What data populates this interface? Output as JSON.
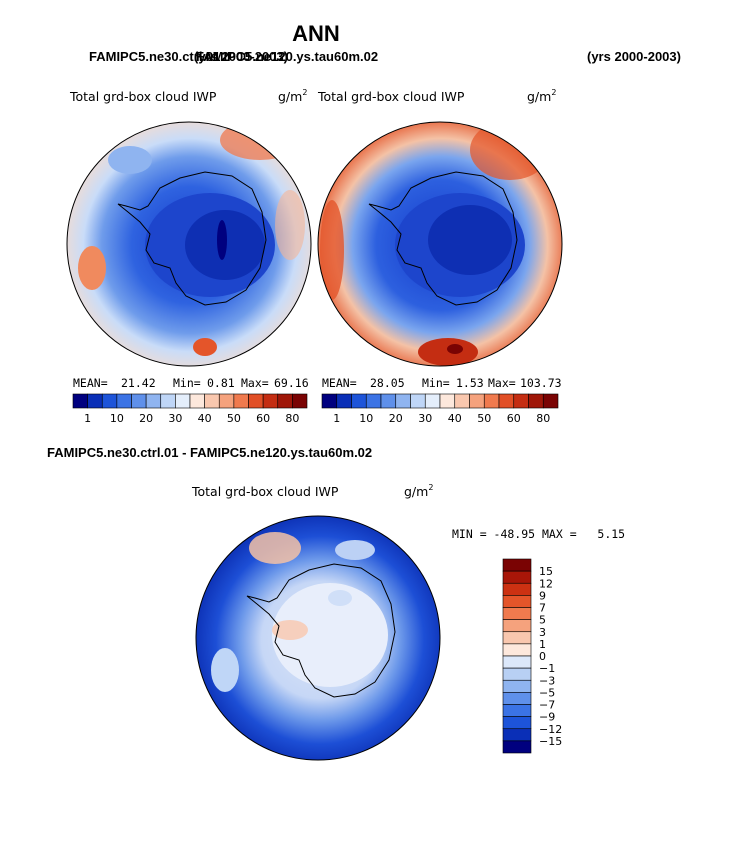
{
  "page_title": "ANN",
  "chart_data": [
    {
      "type": "heatmap",
      "panel": "top-left",
      "run_label_left": "FAMIPC5.ne30.ctrl.01",
      "run_label_right": "(yrs 2000-2003)",
      "title": "Total grd-box cloud IWP",
      "units_base": "g/m",
      "units_exp": "2",
      "stats": {
        "mean_label": "MEAN=",
        "mean": "21.42",
        "min_label": "Min=",
        "min": "0.81",
        "max_label": "Max=",
        "max": "69.16"
      },
      "colorbar": {
        "orientation": "horizontal",
        "tick_labels": [
          "1",
          "10",
          "20",
          "30",
          "40",
          "50",
          "60",
          "80"
        ],
        "colors": [
          "#00007f",
          "#0a2fb7",
          "#1d54d9",
          "#3b73e5",
          "#5f90ea",
          "#8fb4f0",
          "#bfd6f7",
          "#e4eefb",
          "#fde8dc",
          "#f9c7ae",
          "#f5a27d",
          "#f07a4e",
          "#e14f26",
          "#c42d12",
          "#9f1608",
          "#7a0303"
        ]
      }
    },
    {
      "type": "heatmap",
      "panel": "top-right",
      "run_label_left": "FAMIPC5.ne120.ys.tau60m.02",
      "run_label_right": "(yrs 2000-2003)",
      "title": "Total grd-box cloud IWP",
      "units_base": "g/m",
      "units_exp": "2",
      "stats": {
        "mean_label": "MEAN=",
        "mean": "28.05",
        "min_label": "Min=",
        "min": "1.53",
        "max_label": "Max=",
        "max": "103.73"
      },
      "colorbar": {
        "orientation": "horizontal",
        "tick_labels": [
          "1",
          "10",
          "20",
          "30",
          "40",
          "50",
          "60",
          "80"
        ],
        "colors": [
          "#00007f",
          "#0a2fb7",
          "#1d54d9",
          "#3b73e5",
          "#5f90ea",
          "#8fb4f0",
          "#bfd6f7",
          "#e4eefb",
          "#fde8dc",
          "#f9c7ae",
          "#f5a27d",
          "#f07a4e",
          "#e14f26",
          "#c42d12",
          "#9f1608",
          "#7a0303"
        ]
      }
    },
    {
      "type": "heatmap",
      "panel": "bottom",
      "diff_label": "FAMIPC5.ne30.ctrl.01 - FAMIPC5.ne120.ys.tau60m.02",
      "title": "Total grd-box cloud IWP",
      "units_base": "g/m",
      "units_exp": "2",
      "minmax_text": "MIN = -48.95 MAX =   5.15",
      "colorbar": {
        "orientation": "vertical",
        "tick_labels": [
          "15",
          "12",
          "9",
          "7",
          "5",
          "3",
          "1",
          "0",
          "−1",
          "−3",
          "−5",
          "−7",
          "−9",
          "−12",
          "−15"
        ],
        "colors": [
          "#7a0303",
          "#a81608",
          "#cc3112",
          "#e4552a",
          "#f07a4e",
          "#f5a27d",
          "#f9c7ae",
          "#fde8dc",
          "#dce8fa",
          "#b8d0f4",
          "#8fb4f0",
          "#5f90ea",
          "#3b73e5",
          "#1d54d9",
          "#0a2fb7",
          "#00007f"
        ]
      }
    }
  ]
}
